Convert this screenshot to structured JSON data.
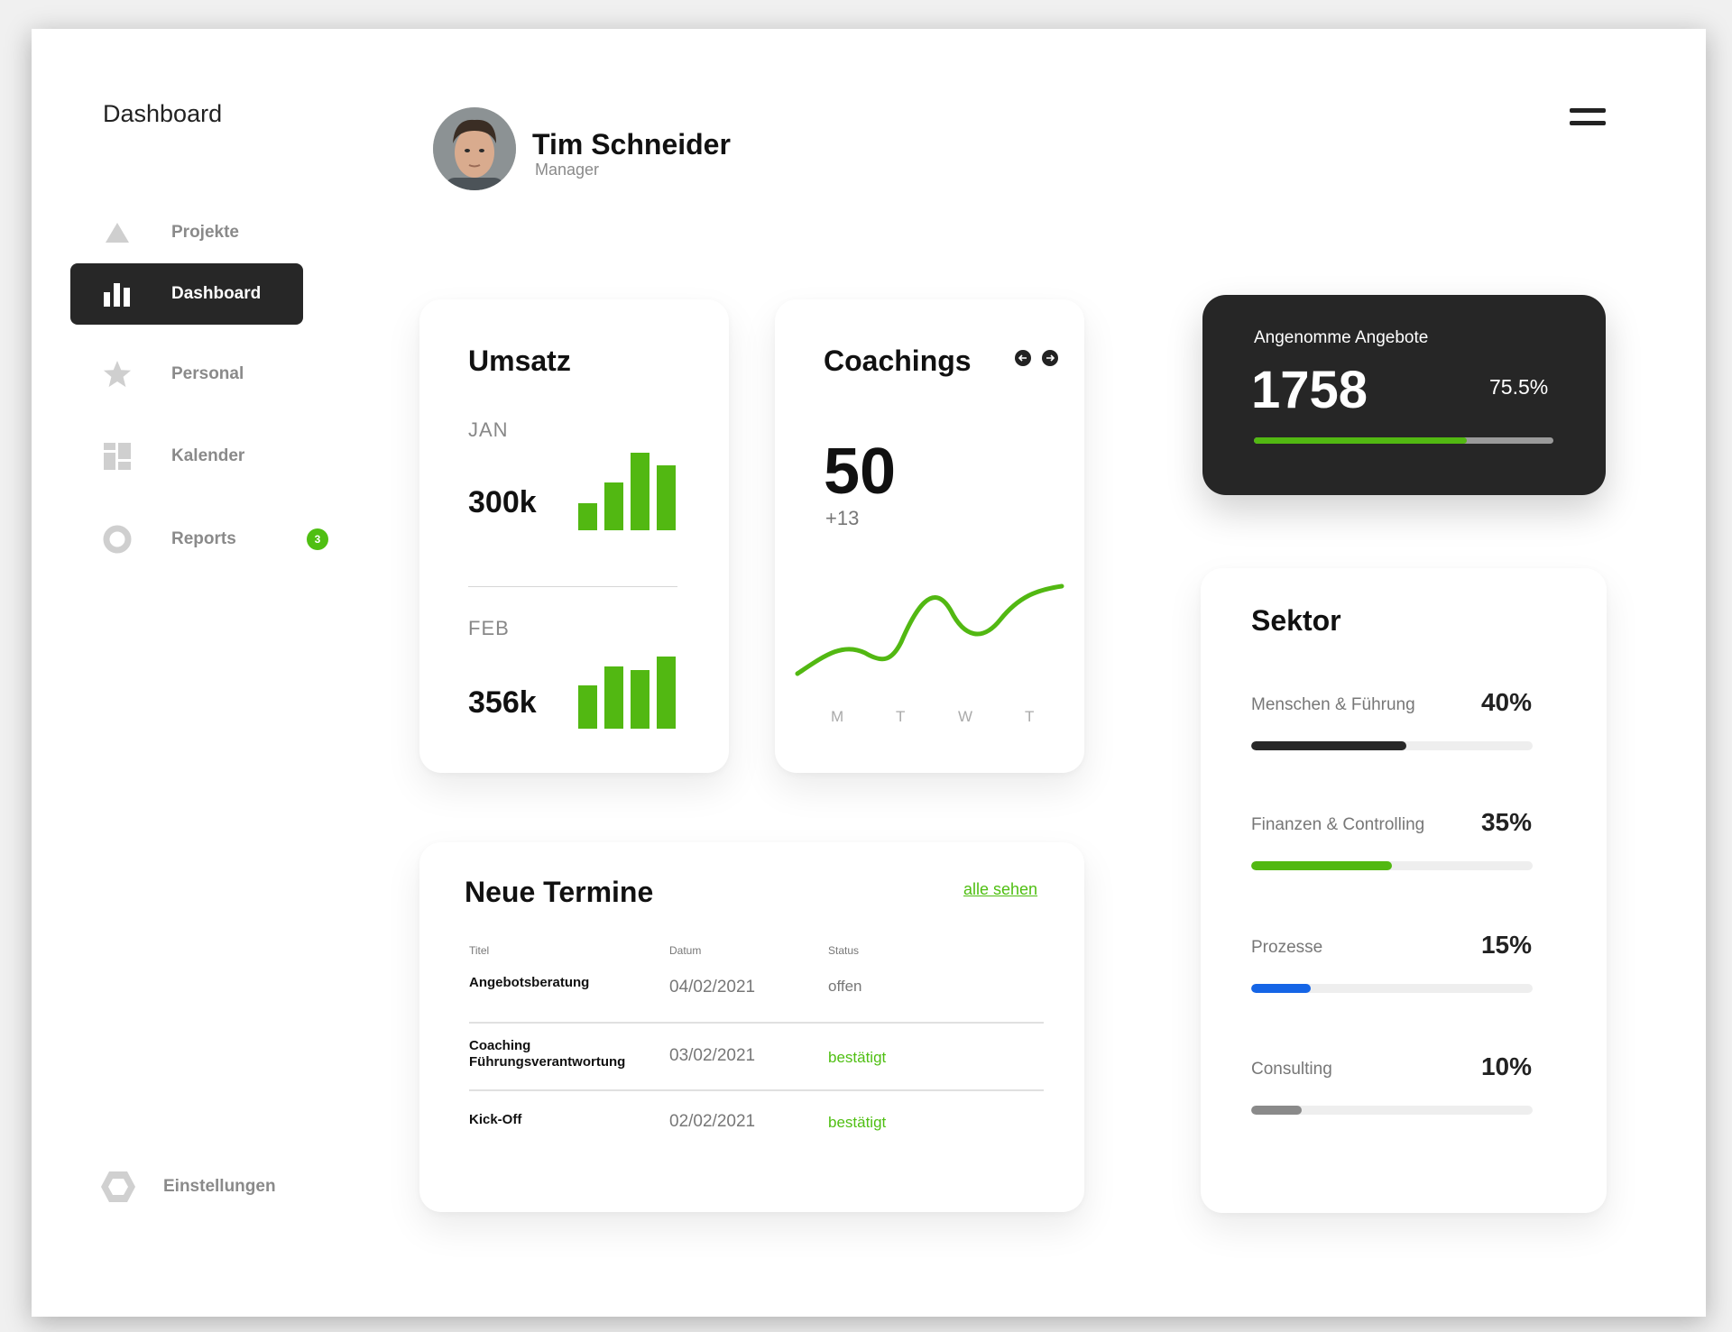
{
  "sidebar": {
    "brand": "Dashboard",
    "items": [
      {
        "label": "Projekte",
        "icon": "triangle-icon",
        "active": false
      },
      {
        "label": "Dashboard",
        "icon": "bar-chart-icon",
        "active": true
      },
      {
        "label": "Personal",
        "icon": "star-icon",
        "active": false
      },
      {
        "label": "Kalender",
        "icon": "calendar-grid-icon",
        "active": false
      },
      {
        "label": "Reports",
        "icon": "circle-icon",
        "active": false,
        "badge": "3"
      }
    ],
    "settings": {
      "label": "Einstellungen",
      "icon": "hexagon-icon"
    }
  },
  "header": {
    "name": "Tim Schneider",
    "role": "Manager",
    "menu_icon": "hamburger-icon"
  },
  "umsatz": {
    "title": "Umsatz",
    "months": [
      {
        "label": "JAN",
        "value": "300k",
        "bars": [
          0.35,
          0.62,
          1.0,
          0.84
        ]
      },
      {
        "label": "FEB",
        "value": "356k",
        "bars": [
          0.56,
          0.8,
          0.76,
          0.93
        ]
      }
    ]
  },
  "coachings": {
    "title": "Coachings",
    "value": "50",
    "delta": "+13",
    "days": [
      "M",
      "T",
      "W",
      "T"
    ]
  },
  "offers": {
    "label": "Angenomme Angebote",
    "value": "1758",
    "percent": "75.5%",
    "progress": 0.71
  },
  "sektor": {
    "title": "Sektor",
    "items": [
      {
        "label": "Menschen & Führung",
        "percent": "40%",
        "fill": 0.55,
        "color": "#272727"
      },
      {
        "label": "Finanzen & Controlling",
        "percent": "35%",
        "fill": 0.5,
        "color": "#52b812"
      },
      {
        "label": "Prozesse",
        "percent": "15%",
        "fill": 0.21,
        "color": "#1565e6"
      },
      {
        "label": "Consulting",
        "percent": "10%",
        "fill": 0.18,
        "color": "#8a8a8a"
      }
    ]
  },
  "termine": {
    "title": "Neue Termine",
    "link": "alle sehen",
    "headers": {
      "title": "Titel",
      "date": "Datum",
      "status": "Status"
    },
    "rows": [
      {
        "title": "Angebotsberatung",
        "date": "04/02/2021",
        "status": "offen",
        "status_color": "#777777"
      },
      {
        "title": "Coaching Führungsverantwortung",
        "date": "03/02/2021",
        "status": "bestätigt",
        "status_color": "#4fbf12"
      },
      {
        "title": "Kick-Off",
        "date": "02/02/2021",
        "status": "bestätigt",
        "status_color": "#4fbf12"
      }
    ]
  },
  "colors": {
    "accent": "#52b812",
    "dark": "#262626",
    "blue": "#1565e6"
  }
}
